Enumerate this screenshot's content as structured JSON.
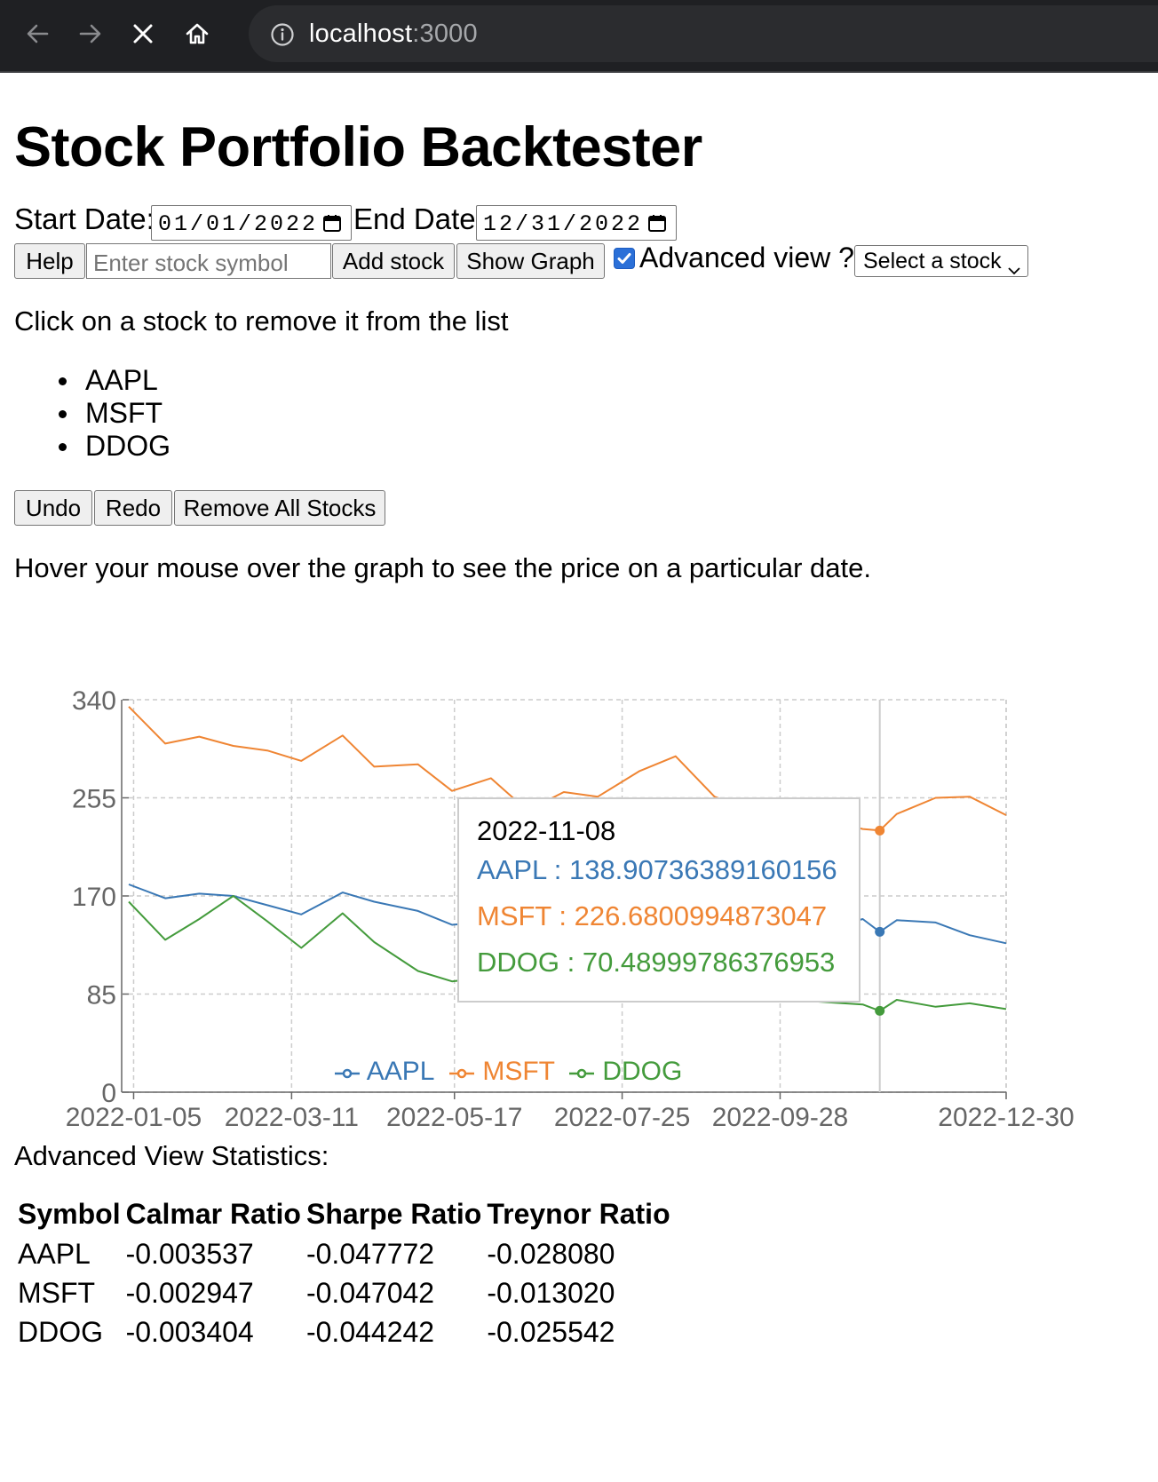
{
  "browser": {
    "url_host": "localhost",
    "url_port": ":3000",
    "icons": [
      "back-icon",
      "forward-icon",
      "stop-icon",
      "home-icon",
      "info-icon"
    ]
  },
  "page": {
    "title": "Stock Portfolio Backtester",
    "start_date_label": "Start Date:",
    "start_date_value": "01/01/2022",
    "end_date_label": "End Date:",
    "end_date_value": "12/31/2022",
    "help_label": "Help",
    "symbol_placeholder": "Enter stock symbol",
    "add_stock_label": "Add stock",
    "show_graph_label": "Show Graph",
    "advanced_view_label": "Advanced view ?",
    "advanced_view_checked": true,
    "select_stock_label": "Select a stock",
    "remove_hint": "Click on a stock to remove it from the list",
    "stocks": [
      "AAPL",
      "MSFT",
      "DDOG"
    ],
    "undo_label": "Undo",
    "redo_label": "Redo",
    "remove_all_label": "Remove All Stocks",
    "hover_hint": "Hover your mouse over the graph to see the price on a particular date."
  },
  "tooltip": {
    "date": "2022-11-08",
    "lines": [
      {
        "symbol": "AAPL",
        "text": "AAPL : 138.90736389160156"
      },
      {
        "symbol": "MSFT",
        "text": "MSFT : 226.6800994873047"
      },
      {
        "symbol": "DDOG",
        "text": "DDOG : 70.48999786376953"
      }
    ]
  },
  "legend": [
    {
      "name": "AAPL",
      "color": "#3a78b5"
    },
    {
      "name": "MSFT",
      "color": "#ef8533"
    },
    {
      "name": "DDOG",
      "color": "#449b3c"
    }
  ],
  "chart_data": {
    "type": "line",
    "title": "",
    "xlabel": "",
    "ylabel": "",
    "x_ticks": [
      "2022-01-05",
      "2022-03-11",
      "2022-05-17",
      "2022-07-25",
      "2022-09-28",
      "2022-12-30"
    ],
    "y_ticks": [
      0,
      85,
      170,
      255,
      340
    ],
    "ylim": [
      0,
      340
    ],
    "xlim": [
      "2022-01-03",
      "2022-12-30"
    ],
    "grid": true,
    "legend_position": "bottom",
    "hover_date": "2022-11-08",
    "series": [
      {
        "name": "AAPL",
        "color": "#3a78b5",
        "x": [
          "2022-01-03",
          "2022-01-18",
          "2022-02-01",
          "2022-02-15",
          "2022-03-01",
          "2022-03-15",
          "2022-04-01",
          "2022-04-14",
          "2022-05-02",
          "2022-05-16",
          "2022-06-01",
          "2022-06-16",
          "2022-07-01",
          "2022-07-15",
          "2022-08-01",
          "2022-08-16",
          "2022-09-01",
          "2022-09-15",
          "2022-10-03",
          "2022-10-17",
          "2022-11-01",
          "2022-11-08",
          "2022-11-15",
          "2022-12-01",
          "2022-12-15",
          "2022-12-30"
        ],
        "y": [
          180,
          168,
          172,
          170,
          162,
          154,
          173,
          165,
          157,
          145,
          148,
          130,
          138,
          149,
          161,
          172,
          156,
          152,
          142,
          141,
          150,
          138.91,
          149,
          147,
          136,
          129
        ]
      },
      {
        "name": "MSFT",
        "color": "#ef8533",
        "x": [
          "2022-01-03",
          "2022-01-18",
          "2022-02-01",
          "2022-02-15",
          "2022-03-01",
          "2022-03-15",
          "2022-04-01",
          "2022-04-14",
          "2022-05-02",
          "2022-05-16",
          "2022-06-01",
          "2022-06-16",
          "2022-07-01",
          "2022-07-15",
          "2022-08-01",
          "2022-08-16",
          "2022-09-01",
          "2022-09-15",
          "2022-10-03",
          "2022-10-17",
          "2022-11-01",
          "2022-11-08",
          "2022-11-15",
          "2022-12-01",
          "2022-12-15",
          "2022-12-30"
        ],
        "y": [
          334,
          302,
          308,
          300,
          296,
          287,
          309,
          282,
          284,
          261,
          272,
          244,
          260,
          256,
          278,
          291,
          256,
          245,
          240,
          236,
          228,
          226.68,
          241,
          255,
          256,
          240
        ]
      },
      {
        "name": "DDOG",
        "color": "#449b3c",
        "x": [
          "2022-01-03",
          "2022-01-18",
          "2022-02-01",
          "2022-02-15",
          "2022-03-01",
          "2022-03-15",
          "2022-04-01",
          "2022-04-14",
          "2022-05-02",
          "2022-05-16",
          "2022-06-01",
          "2022-06-16",
          "2022-07-01",
          "2022-07-15",
          "2022-08-01",
          "2022-08-16",
          "2022-09-01",
          "2022-09-15",
          "2022-10-03",
          "2022-10-17",
          "2022-11-01",
          "2022-11-08",
          "2022-11-15",
          "2022-12-01",
          "2022-12-15",
          "2022-12-30"
        ],
        "y": [
          165,
          132,
          150,
          170,
          148,
          125,
          155,
          130,
          105,
          96,
          100,
          92,
          96,
          108,
          112,
          104,
          92,
          90,
          80,
          78,
          76,
          70.49,
          80,
          74,
          77,
          72
        ]
      }
    ]
  },
  "stats": {
    "heading": "Advanced View Statistics:",
    "columns": [
      "Symbol",
      "Calmar Ratio",
      "Sharpe Ratio",
      "Treynor Ratio"
    ],
    "rows": [
      [
        "AAPL",
        "-0.003537",
        "-0.047772",
        "-0.028080"
      ],
      [
        "MSFT",
        "-0.002947",
        "-0.047042",
        "-0.013020"
      ],
      [
        "DDOG",
        "-0.003404",
        "-0.044242",
        "-0.025542"
      ]
    ]
  }
}
